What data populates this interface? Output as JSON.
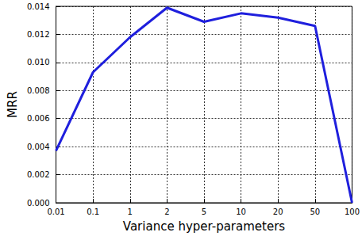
{
  "chart_data": {
    "type": "line",
    "x_label": "Variance hyper-parameters",
    "y_label": "MRR",
    "categories": [
      "0.01",
      "0.1",
      "1",
      "2",
      "5",
      "10",
      "20",
      "50",
      "100"
    ],
    "values": [
      0.0037,
      0.0093,
      0.0118,
      0.0139,
      0.0129,
      0.0135,
      0.0132,
      0.0126,
      0.0
    ],
    "color": "#1f1fdd",
    "ylim": [
      0,
      0.014
    ],
    "yticks": [
      {
        "value": 0,
        "label": "0.000"
      },
      {
        "value": 0.002,
        "label": "0.002"
      },
      {
        "value": 0.004,
        "label": "0.004"
      },
      {
        "value": 0.006,
        "label": "0.006"
      },
      {
        "value": 0.008,
        "label": "0.008"
      },
      {
        "value": 0.01,
        "label": "0.010"
      },
      {
        "value": 0.012,
        "label": "0.012"
      },
      {
        "value": 0.014,
        "label": "0.014"
      }
    ],
    "grid": true
  }
}
